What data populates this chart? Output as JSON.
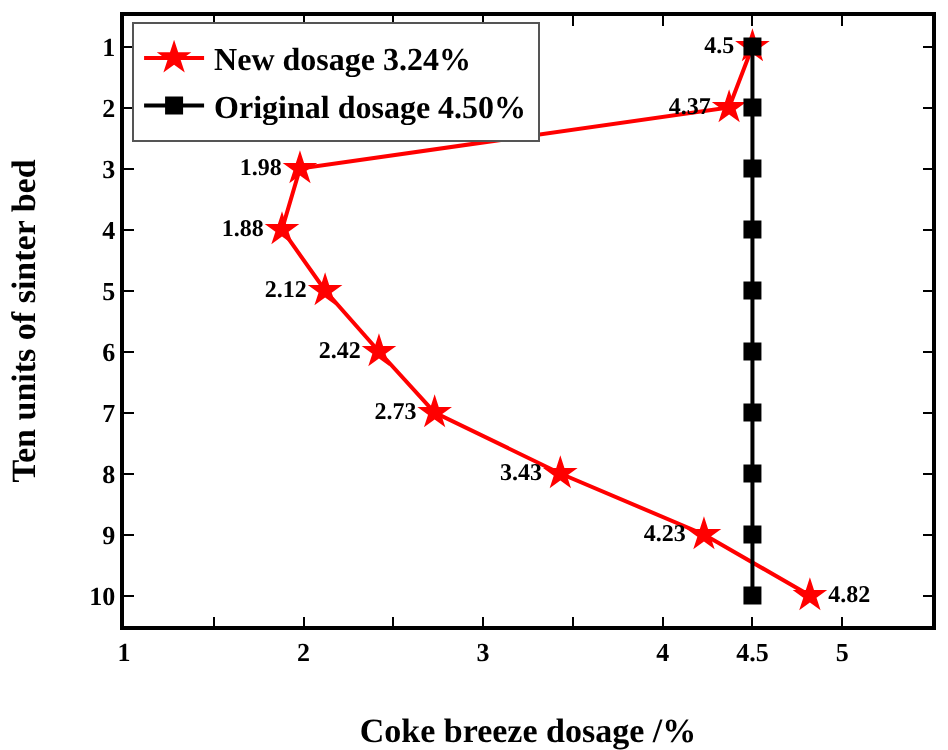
{
  "chart_data": {
    "type": "line",
    "orientation": "horizontal",
    "xlabel": "Coke breeze dosage /%",
    "ylabel": "Ten units of sinter bed",
    "categories": [
      "1",
      "2",
      "3",
      "4",
      "5",
      "6",
      "7",
      "8",
      "9",
      "10"
    ],
    "xlim": [
      1,
      5.5
    ],
    "xticks": [
      1,
      {
        "value": 1.5,
        "label": null
      },
      2,
      {
        "value": 2.5,
        "label": null
      },
      3,
      {
        "value": 3.5,
        "label": null
      },
      4,
      4.5,
      5
    ],
    "grid": false,
    "legend": "top left",
    "series": [
      {
        "name": "New dosage 3.24%",
        "color": "#ff0000",
        "marker": "star",
        "values": [
          4.5,
          4.37,
          1.98,
          1.88,
          2.12,
          2.42,
          2.73,
          3.43,
          4.23,
          4.82
        ],
        "value_labels": [
          "4.5",
          "4.37",
          "1.98",
          "1.88",
          "2.12",
          "2.42",
          "2.73",
          "3.43",
          "4.23",
          "4.82"
        ]
      },
      {
        "name": "Original dosage 4.50%",
        "color": "#000000",
        "marker": "square",
        "values": [
          4.5,
          4.5,
          4.5,
          4.5,
          4.5,
          4.5,
          4.5,
          4.5,
          4.5,
          4.5
        ]
      }
    ]
  }
}
